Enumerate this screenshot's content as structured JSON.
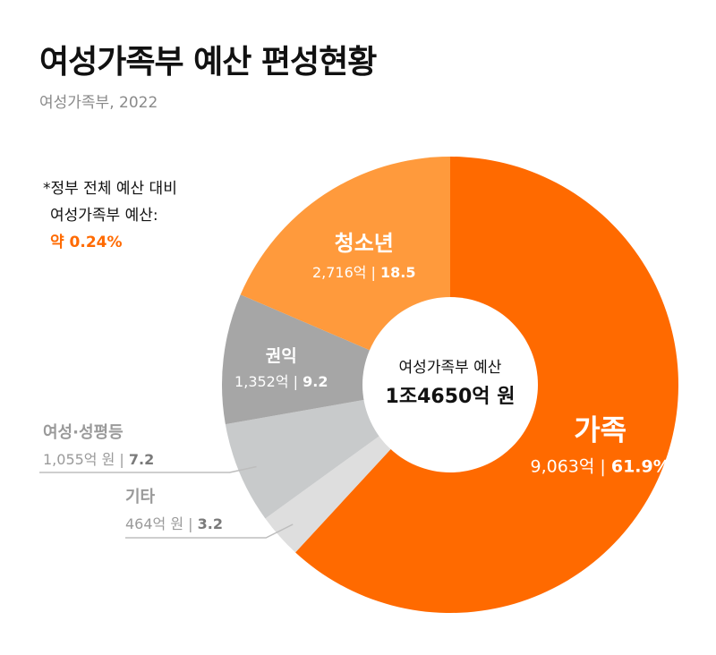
{
  "title": "여성가족부 예산 편성현황",
  "subtitle": "여성가족부, 2022",
  "note": {
    "line1": "*정부 전체 예산 대비",
    "line2": "여성가족부 예산:",
    "highlight": "약 0.24%"
  },
  "center": {
    "label": "여성가족부 예산",
    "value": "1조4650억 원"
  },
  "colors": {
    "family": "#ff6a00",
    "youth": "#ff9a3c",
    "rights": "#a6a6a6",
    "gender": "#c8cacb",
    "other": "#dedede",
    "leader": "#bdbdbd"
  },
  "chart_data": {
    "type": "pie",
    "donut": true,
    "title": "여성가족부 예산 편성현황",
    "unit": "억",
    "total": 14650,
    "slices": [
      {
        "key": "family",
        "name": "가족",
        "value": 9063,
        "percent": 61.9,
        "value_label": "9,063억",
        "percent_label": "61.9%"
      },
      {
        "key": "other",
        "name": "기타",
        "value": 464,
        "percent": 3.2,
        "value_label": "464억 원",
        "percent_label": "3.2"
      },
      {
        "key": "gender",
        "name": "여성·성평등",
        "value": 1055,
        "percent": 7.2,
        "value_label": "1,055억 원",
        "percent_label": "7.2"
      },
      {
        "key": "rights",
        "name": "권익",
        "value": 1352,
        "percent": 9.2,
        "value_label": "1,352억",
        "percent_label": "9.2"
      },
      {
        "key": "youth",
        "name": "청소년",
        "value": 2716,
        "percent": 18.5,
        "value_label": "2,716억",
        "percent_label": "18.5"
      }
    ]
  }
}
